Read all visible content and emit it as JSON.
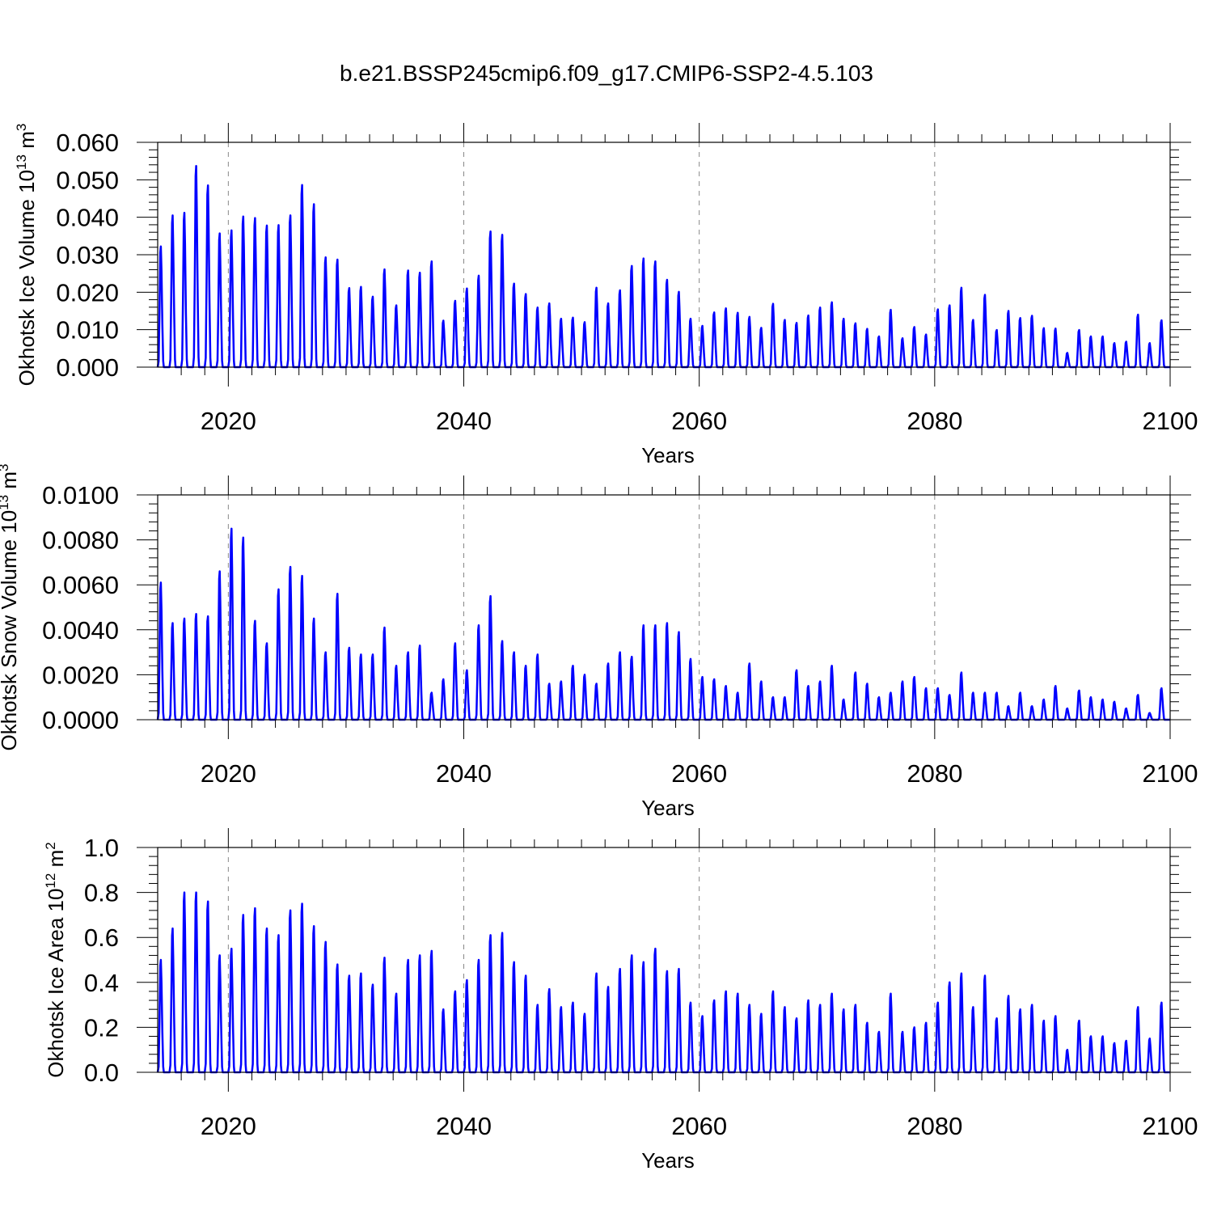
{
  "title": "b.e21.BSSP245cmip6.f09_g17.CMIP6-SSP2-4.5.103",
  "colors": {
    "series": "#0000ff",
    "axis": "#000000",
    "gridline": "#888888"
  },
  "chart_data": [
    {
      "type": "line",
      "ylabel": {
        "main": "Okhotsk Ice Volume 10",
        "exp": "13",
        "unit": " m",
        "unit_exp": "3"
      },
      "xlabel": "Years",
      "xlim": [
        2014,
        2100
      ],
      "ylim": [
        0.0,
        0.06
      ],
      "x_ticks": [
        "2020",
        "2040",
        "2060",
        "2080",
        "2100"
      ],
      "y_ticks": [
        "0.000",
        "0.010",
        "0.020",
        "0.030",
        "0.040",
        "0.050",
        "0.060"
      ],
      "grid": "vertical dashed at major x ticks",
      "series": [
        {
          "x": [
            2014,
            2015,
            2016,
            2017,
            2018,
            2019,
            2020,
            2021,
            2022,
            2023,
            2024,
            2025,
            2026,
            2027,
            2028,
            2029,
            2030,
            2031,
            2032,
            2033,
            2034,
            2035,
            2036,
            2037,
            2038,
            2039,
            2040,
            2041,
            2042,
            2043,
            2044,
            2045,
            2046,
            2047,
            2048,
            2049,
            2050,
            2051,
            2052,
            2053,
            2054,
            2055,
            2056,
            2057,
            2058,
            2059,
            2060,
            2061,
            2062,
            2063,
            2064,
            2065,
            2066,
            2067,
            2068,
            2069,
            2070,
            2071,
            2072,
            2073,
            2074,
            2075,
            2076,
            2077,
            2078,
            2079,
            2080,
            2081,
            2082,
            2083,
            2084,
            2085,
            2086,
            2087,
            2088,
            2089,
            2090,
            2091,
            2092,
            2093,
            2094,
            2095,
            2096,
            2097,
            2098,
            2099
          ],
          "peaks": [
            0.0322,
            0.0405,
            0.0412,
            0.0537,
            0.0485,
            0.0357,
            0.0365,
            0.0402,
            0.0398,
            0.0378,
            0.0379,
            0.0405,
            0.0486,
            0.0435,
            0.0293,
            0.0287,
            0.0211,
            0.0214,
            0.0188,
            0.0261,
            0.0165,
            0.0258,
            0.0252,
            0.0282,
            0.0124,
            0.0177,
            0.021,
            0.0244,
            0.0362,
            0.0353,
            0.0223,
            0.0195,
            0.0159,
            0.017,
            0.0129,
            0.0132,
            0.012,
            0.0212,
            0.017,
            0.0205,
            0.027,
            0.029,
            0.0282,
            0.0233,
            0.0201,
            0.0129,
            0.011,
            0.0146,
            0.0157,
            0.0145,
            0.0134,
            0.0105,
            0.0169,
            0.0126,
            0.0118,
            0.0138,
            0.0159,
            0.0173,
            0.0129,
            0.0117,
            0.0102,
            0.0082,
            0.0153,
            0.0077,
            0.0107,
            0.0087,
            0.0154,
            0.0165,
            0.0212,
            0.0126,
            0.0193,
            0.0099,
            0.015,
            0.0131,
            0.0137,
            0.0104,
            0.0103,
            0.0038,
            0.0099,
            0.0082,
            0.0082,
            0.0064,
            0.0068,
            0.014,
            0.0064,
            0.0125
          ]
        }
      ]
    },
    {
      "type": "line",
      "ylabel": {
        "main": "Okhotsk Snow Volume 10",
        "exp": "13",
        "unit": " m",
        "unit_exp": "3"
      },
      "xlabel": "Years",
      "xlim": [
        2014,
        2100
      ],
      "ylim": [
        0.0,
        0.01
      ],
      "x_ticks": [
        "2020",
        "2040",
        "2060",
        "2080",
        "2100"
      ],
      "y_ticks": [
        "0.0000",
        "0.0020",
        "0.0040",
        "0.0060",
        "0.0080",
        "0.0100"
      ],
      "grid": "vertical dashed at major x ticks",
      "series": [
        {
          "x": [
            2014,
            2015,
            2016,
            2017,
            2018,
            2019,
            2020,
            2021,
            2022,
            2023,
            2024,
            2025,
            2026,
            2027,
            2028,
            2029,
            2030,
            2031,
            2032,
            2033,
            2034,
            2035,
            2036,
            2037,
            2038,
            2039,
            2040,
            2041,
            2042,
            2043,
            2044,
            2045,
            2046,
            2047,
            2048,
            2049,
            2050,
            2051,
            2052,
            2053,
            2054,
            2055,
            2056,
            2057,
            2058,
            2059,
            2060,
            2061,
            2062,
            2063,
            2064,
            2065,
            2066,
            2067,
            2068,
            2069,
            2070,
            2071,
            2072,
            2073,
            2074,
            2075,
            2076,
            2077,
            2078,
            2079,
            2080,
            2081,
            2082,
            2083,
            2084,
            2085,
            2086,
            2087,
            2088,
            2089,
            2090,
            2091,
            2092,
            2093,
            2094,
            2095,
            2096,
            2097,
            2098,
            2099
          ],
          "peaks": [
            0.0061,
            0.0043,
            0.0045,
            0.0047,
            0.0046,
            0.0066,
            0.0085,
            0.0081,
            0.0044,
            0.0034,
            0.0058,
            0.0068,
            0.0064,
            0.0045,
            0.003,
            0.0056,
            0.0032,
            0.0029,
            0.0029,
            0.0041,
            0.0024,
            0.003,
            0.0033,
            0.0012,
            0.0018,
            0.0034,
            0.0022,
            0.0042,
            0.0055,
            0.0035,
            0.003,
            0.0024,
            0.0029,
            0.0016,
            0.0017,
            0.0024,
            0.002,
            0.0016,
            0.0025,
            0.003,
            0.0028,
            0.0042,
            0.0042,
            0.0043,
            0.0039,
            0.0027,
            0.0019,
            0.0018,
            0.0015,
            0.0012,
            0.0025,
            0.0017,
            0.001,
            0.001,
            0.0022,
            0.0015,
            0.0017,
            0.0024,
            0.0009,
            0.0021,
            0.0016,
            0.001,
            0.0012,
            0.0017,
            0.0019,
            0.0014,
            0.0014,
            0.0011,
            0.0021,
            0.0012,
            0.0012,
            0.0012,
            0.0006,
            0.0012,
            0.0006,
            0.0009,
            0.0015,
            0.0005,
            0.0013,
            0.001,
            0.0009,
            0.0008,
            0.0005,
            0.0011,
            0.0003,
            0.0014
          ]
        }
      ]
    },
    {
      "type": "line",
      "ylabel": {
        "main": "Okhotsk Ice Area 10",
        "exp": "12",
        "unit": " m",
        "unit_exp": "2"
      },
      "xlabel": "Years",
      "xlim": [
        2014,
        2100
      ],
      "ylim": [
        0.0,
        1.0
      ],
      "x_ticks": [
        "2020",
        "2040",
        "2060",
        "2080",
        "2100"
      ],
      "y_ticks": [
        "0.0",
        "0.2",
        "0.4",
        "0.6",
        "0.8",
        "1.0"
      ],
      "grid": "vertical dashed at major x ticks",
      "series": [
        {
          "x": [
            2014,
            2015,
            2016,
            2017,
            2018,
            2019,
            2020,
            2021,
            2022,
            2023,
            2024,
            2025,
            2026,
            2027,
            2028,
            2029,
            2030,
            2031,
            2032,
            2033,
            2034,
            2035,
            2036,
            2037,
            2038,
            2039,
            2040,
            2041,
            2042,
            2043,
            2044,
            2045,
            2046,
            2047,
            2048,
            2049,
            2050,
            2051,
            2052,
            2053,
            2054,
            2055,
            2056,
            2057,
            2058,
            2059,
            2060,
            2061,
            2062,
            2063,
            2064,
            2065,
            2066,
            2067,
            2068,
            2069,
            2070,
            2071,
            2072,
            2073,
            2074,
            2075,
            2076,
            2077,
            2078,
            2079,
            2080,
            2081,
            2082,
            2083,
            2084,
            2085,
            2086,
            2087,
            2088,
            2089,
            2090,
            2091,
            2092,
            2093,
            2094,
            2095,
            2096,
            2097,
            2098,
            2099
          ],
          "peaks": [
            0.5,
            0.64,
            0.8,
            0.8,
            0.76,
            0.52,
            0.55,
            0.7,
            0.73,
            0.64,
            0.61,
            0.72,
            0.75,
            0.65,
            0.58,
            0.48,
            0.43,
            0.44,
            0.39,
            0.51,
            0.35,
            0.5,
            0.52,
            0.54,
            0.28,
            0.36,
            0.41,
            0.5,
            0.61,
            0.62,
            0.49,
            0.43,
            0.3,
            0.37,
            0.29,
            0.31,
            0.26,
            0.44,
            0.38,
            0.46,
            0.52,
            0.49,
            0.55,
            0.45,
            0.46,
            0.31,
            0.25,
            0.32,
            0.36,
            0.35,
            0.3,
            0.26,
            0.36,
            0.29,
            0.24,
            0.32,
            0.3,
            0.35,
            0.28,
            0.3,
            0.22,
            0.18,
            0.35,
            0.18,
            0.2,
            0.22,
            0.31,
            0.4,
            0.44,
            0.29,
            0.43,
            0.24,
            0.34,
            0.28,
            0.3,
            0.23,
            0.25,
            0.1,
            0.23,
            0.16,
            0.16,
            0.13,
            0.14,
            0.29,
            0.15,
            0.31
          ]
        }
      ]
    }
  ]
}
